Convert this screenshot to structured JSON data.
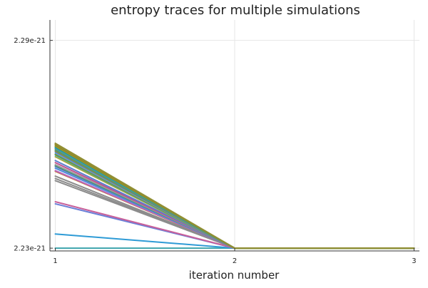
{
  "chart_data": {
    "type": "line",
    "title": "entropy traces for multiple simulations",
    "xlabel": "iteration number",
    "ylabel": "",
    "xlim": [
      0.97,
      3.03
    ],
    "ylim": [
      2.2292e-21,
      2.2959e-21
    ],
    "xticks": [
      {
        "value": 1,
        "label": "1"
      },
      {
        "value": 2,
        "label": "2"
      },
      {
        "value": 3,
        "label": "3"
      }
    ],
    "yticks": [
      {
        "value": 2.23e-21,
        "label": "2.23e-21"
      },
      {
        "value": 2.29e-21,
        "label": "2.29e-21"
      }
    ],
    "grid": true,
    "legend": false,
    "x": [
      1,
      2,
      3
    ],
    "series": [
      {
        "color": "#3da4ad",
        "values": [
          2.23e-21,
          2.23e-21,
          2.23e-21
        ]
      },
      {
        "color": "#2e9bd6",
        "values": [
          2.2341e-21,
          2.23e-21,
          2.23e-21
        ]
      },
      {
        "color": "#6a7fd8",
        "values": [
          2.2428e-21,
          2.23e-21,
          2.23e-21
        ]
      },
      {
        "color": "#c8609a",
        "values": [
          2.2434e-21,
          2.23e-21,
          2.23e-21
        ]
      },
      {
        "color": "#8c8c8c",
        "values": [
          2.2495e-21,
          2.23e-21,
          2.23e-21
        ]
      },
      {
        "color": "#8c8c8c",
        "values": [
          2.2501e-21,
          2.23e-21,
          2.23e-21
        ]
      },
      {
        "color": "#8c8c8c",
        "values": [
          2.2508e-21,
          2.23e-21,
          2.23e-21
        ]
      },
      {
        "color": "#c27a38",
        "values": [
          2.2522e-21,
          2.23e-21,
          2.23e-21
        ]
      },
      {
        "color": "#b865c0",
        "values": [
          2.2524e-21,
          2.23e-21,
          2.23e-21
        ]
      },
      {
        "color": "#4a90d9",
        "values": [
          2.2531e-21,
          2.23e-21,
          2.23e-21
        ]
      },
      {
        "color": "#7b6fd6",
        "values": [
          2.2536e-21,
          2.23e-21,
          2.23e-21
        ]
      },
      {
        "color": "#2f9b6e",
        "values": [
          2.2538e-21,
          2.23e-21,
          2.23e-21
        ]
      },
      {
        "color": "#9a9a9a",
        "values": [
          2.2541e-21,
          2.23e-21,
          2.23e-21
        ]
      },
      {
        "color": "#c0508c",
        "values": [
          2.2547e-21,
          2.23e-21,
          2.23e-21
        ]
      },
      {
        "color": "#5c7ecf",
        "values": [
          2.2553e-21,
          2.23e-21,
          2.23e-21
        ]
      },
      {
        "color": "#a6a63a",
        "values": [
          2.2564e-21,
          2.23e-21,
          2.23e-21
        ]
      },
      {
        "color": "#22a3b5",
        "values": [
          2.2569e-21,
          2.23e-21,
          2.23e-21
        ]
      },
      {
        "color": "#7c9a2f",
        "values": [
          2.2571e-21,
          2.23e-21,
          2.23e-21
        ]
      },
      {
        "color": "#6d8fe0",
        "values": [
          2.2575e-21,
          2.23e-21,
          2.23e-21
        ]
      },
      {
        "color": "#3aa0a0",
        "values": [
          2.2579e-21,
          2.23e-21,
          2.23e-21
        ]
      },
      {
        "color": "#b47a2e",
        "values": [
          2.2581e-21,
          2.23e-21,
          2.23e-21
        ]
      },
      {
        "color": "#1fa39a",
        "values": [
          2.2584e-21,
          2.23e-21,
          2.23e-21
        ]
      },
      {
        "color": "#95a032",
        "values": [
          2.2587e-21,
          2.23e-21,
          2.23e-21
        ]
      },
      {
        "color": "#2c8fd8",
        "values": [
          2.2589e-21,
          2.23e-21,
          2.23e-21
        ]
      },
      {
        "color": "#1b9e8f",
        "values": [
          2.2592e-21,
          2.23e-21,
          2.23e-21
        ]
      },
      {
        "color": "#8a9e2c",
        "values": [
          2.2594e-21,
          2.23e-21,
          2.23e-21
        ]
      },
      {
        "color": "#b07a30",
        "values": [
          2.2597e-21,
          2.23e-21,
          2.23e-21
        ]
      },
      {
        "color": "#6f9a28",
        "values": [
          2.2599e-21,
          2.23e-21,
          2.23e-21
        ]
      },
      {
        "color": "#a9872e",
        "values": [
          2.2601e-21,
          2.23e-21,
          2.23e-21
        ]
      },
      {
        "color": "#8f8f34",
        "values": [
          2.2603e-21,
          2.23e-21,
          2.23e-21
        ]
      }
    ]
  }
}
